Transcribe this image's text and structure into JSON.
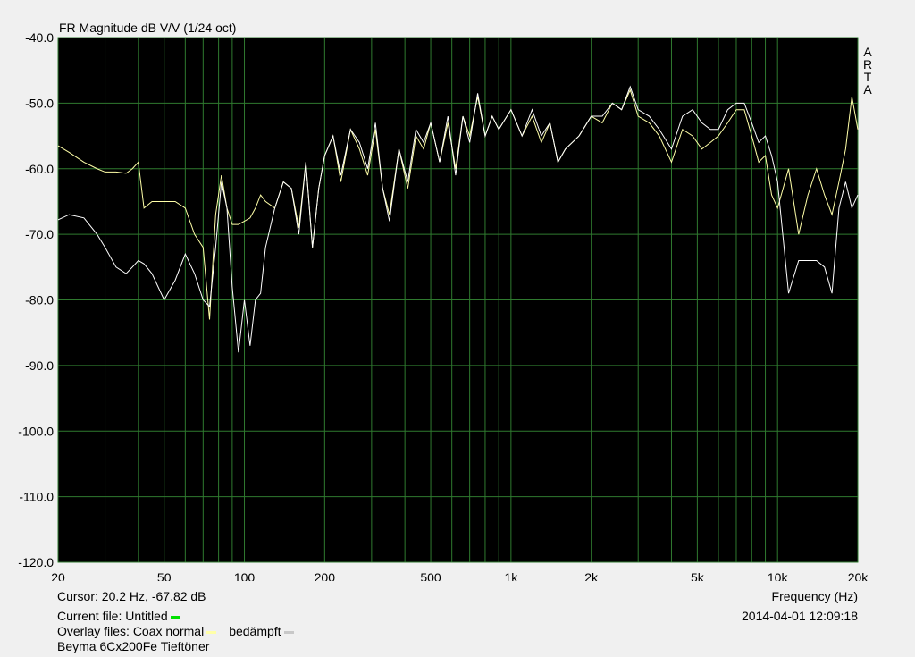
{
  "chart_data": {
    "type": "line",
    "title": "FR Magnitude dB V/V (1/24 oct)",
    "brand": "ARTA",
    "xlabel": "Frequency (Hz)",
    "cursor": "Cursor: 20.2 Hz, -67.82 dB",
    "current_file": "Current file: Untitled",
    "current_file_color": "#00e000",
    "overlay_label": "Overlay files:",
    "caption": "Beyma 6Cx200Fe Tieftöner",
    "timestamp": "2014-04-01  12:09:18",
    "xlog": true,
    "grid": true,
    "xlim": [
      20,
      20000
    ],
    "xticks": [
      20,
      50,
      100,
      200,
      500,
      {
        "value": 1000,
        "label": "1k"
      },
      {
        "value": 2000,
        "label": "2k"
      },
      {
        "value": 5000,
        "label": "5k"
      },
      {
        "value": 10000,
        "label": "10k"
      },
      {
        "value": 20000,
        "label": "20k"
      }
    ],
    "x_gridlines": [
      30,
      40,
      60,
      70,
      80,
      90,
      300,
      400,
      600,
      700,
      800,
      900,
      3000,
      4000,
      6000,
      7000,
      8000,
      9000
    ],
    "ylim": [
      -120,
      -40
    ],
    "yticks": [
      {
        "value": -120,
        "label": "-120.0"
      },
      {
        "value": -110,
        "label": "-110.0"
      },
      {
        "value": -100,
        "label": "-100.0"
      },
      {
        "value": -90,
        "label": "-90.0"
      },
      {
        "value": -80,
        "label": "-80.0"
      },
      {
        "value": -70,
        "label": "-70.0"
      },
      {
        "value": -60,
        "label": "-60.0"
      },
      {
        "value": -50,
        "label": "-50.0"
      },
      {
        "value": -40,
        "label": "-40.0"
      }
    ],
    "x": [
      20,
      22,
      25,
      28,
      30,
      33,
      36,
      38,
      40,
      42,
      45,
      50,
      55,
      60,
      65,
      70,
      74,
      78,
      82,
      86,
      90,
      95,
      100,
      105,
      110,
      115,
      120,
      130,
      140,
      150,
      160,
      170,
      180,
      190,
      200,
      215,
      230,
      250,
      270,
      290,
      310,
      330,
      350,
      380,
      410,
      440,
      470,
      500,
      540,
      580,
      620,
      660,
      700,
      750,
      800,
      850,
      900,
      1000,
      1100,
      1200,
      1300,
      1400,
      1500,
      1600,
      1800,
      2000,
      2200,
      2400,
      2600,
      2800,
      3000,
      3300,
      3600,
      4000,
      4400,
      4800,
      5200,
      5600,
      6000,
      6500,
      7000,
      7500,
      8000,
      8500,
      9000,
      9500,
      10000,
      11000,
      12000,
      13000,
      14000,
      15000,
      16000,
      17000,
      18000,
      19000,
      20000
    ],
    "series": [
      {
        "name": "Coax normal",
        "color": "#ffffa8",
        "swatch": "#ffffa8",
        "values": [
          -56.5,
          -57.5,
          -59,
          -60,
          -60.5,
          -60.5,
          -60.7,
          -60,
          -59,
          -66,
          -65,
          -65,
          -65,
          -66,
          -70,
          -72,
          -83,
          -67,
          -61,
          -66,
          -68.5,
          -68.5,
          -68,
          -67.5,
          -66,
          -64,
          -65,
          -66,
          -62,
          -63,
          -69,
          -59,
          -72,
          -63,
          -58,
          -55,
          -62,
          -54,
          -57,
          -61,
          -54,
          -63,
          -67,
          -57,
          -63,
          -55,
          -57,
          -53,
          -59,
          -53,
          -60,
          -52,
          -55,
          -49,
          -55,
          -52,
          -54,
          -51,
          -55,
          -52,
          -56,
          -53,
          -59,
          -57,
          -55,
          -52,
          -53,
          -50,
          -51,
          -48,
          -52,
          -53,
          -55,
          -59,
          -54,
          -55,
          -57,
          -56,
          -55,
          -53,
          -51,
          -51,
          -55,
          -59,
          -58,
          -64,
          -66,
          -60,
          -70,
          -64,
          -60,
          -64,
          -67,
          -62,
          -57,
          -49,
          -54
        ]
      },
      {
        "name": "bedämpft",
        "color": "#ffffff",
        "swatch": "#c8c8c8",
        "values": [
          -67.8,
          -67,
          -67.5,
          -70,
          -72,
          -75,
          -76,
          -75,
          -74,
          -74.5,
          -76,
          -80,
          -77,
          -73,
          -76,
          -80,
          -81,
          -72,
          -62,
          -66,
          -78,
          -88,
          -80,
          -87,
          -80,
          -79,
          -72,
          -66,
          -62,
          -63,
          -70,
          -59,
          -72,
          -63,
          -58,
          -55,
          -61,
          -54,
          -56,
          -60,
          -53,
          -63,
          -68,
          -57,
          -62,
          -54,
          -56,
          -53,
          -59,
          -52,
          -61,
          -52,
          -56,
          -48.5,
          -55,
          -52,
          -54,
          -51,
          -55,
          -51,
          -55,
          -53,
          -59,
          -57,
          -55,
          -52,
          -52,
          -50,
          -51,
          -47.5,
          -51,
          -52,
          -54,
          -57,
          -52,
          -51,
          -53,
          -54,
          -54,
          -51,
          -50,
          -50,
          -53,
          -56,
          -55,
          -58,
          -62,
          -79,
          -74,
          -74,
          -74,
          -75,
          -79,
          -66,
          -62,
          -66,
          -64
        ]
      }
    ]
  }
}
